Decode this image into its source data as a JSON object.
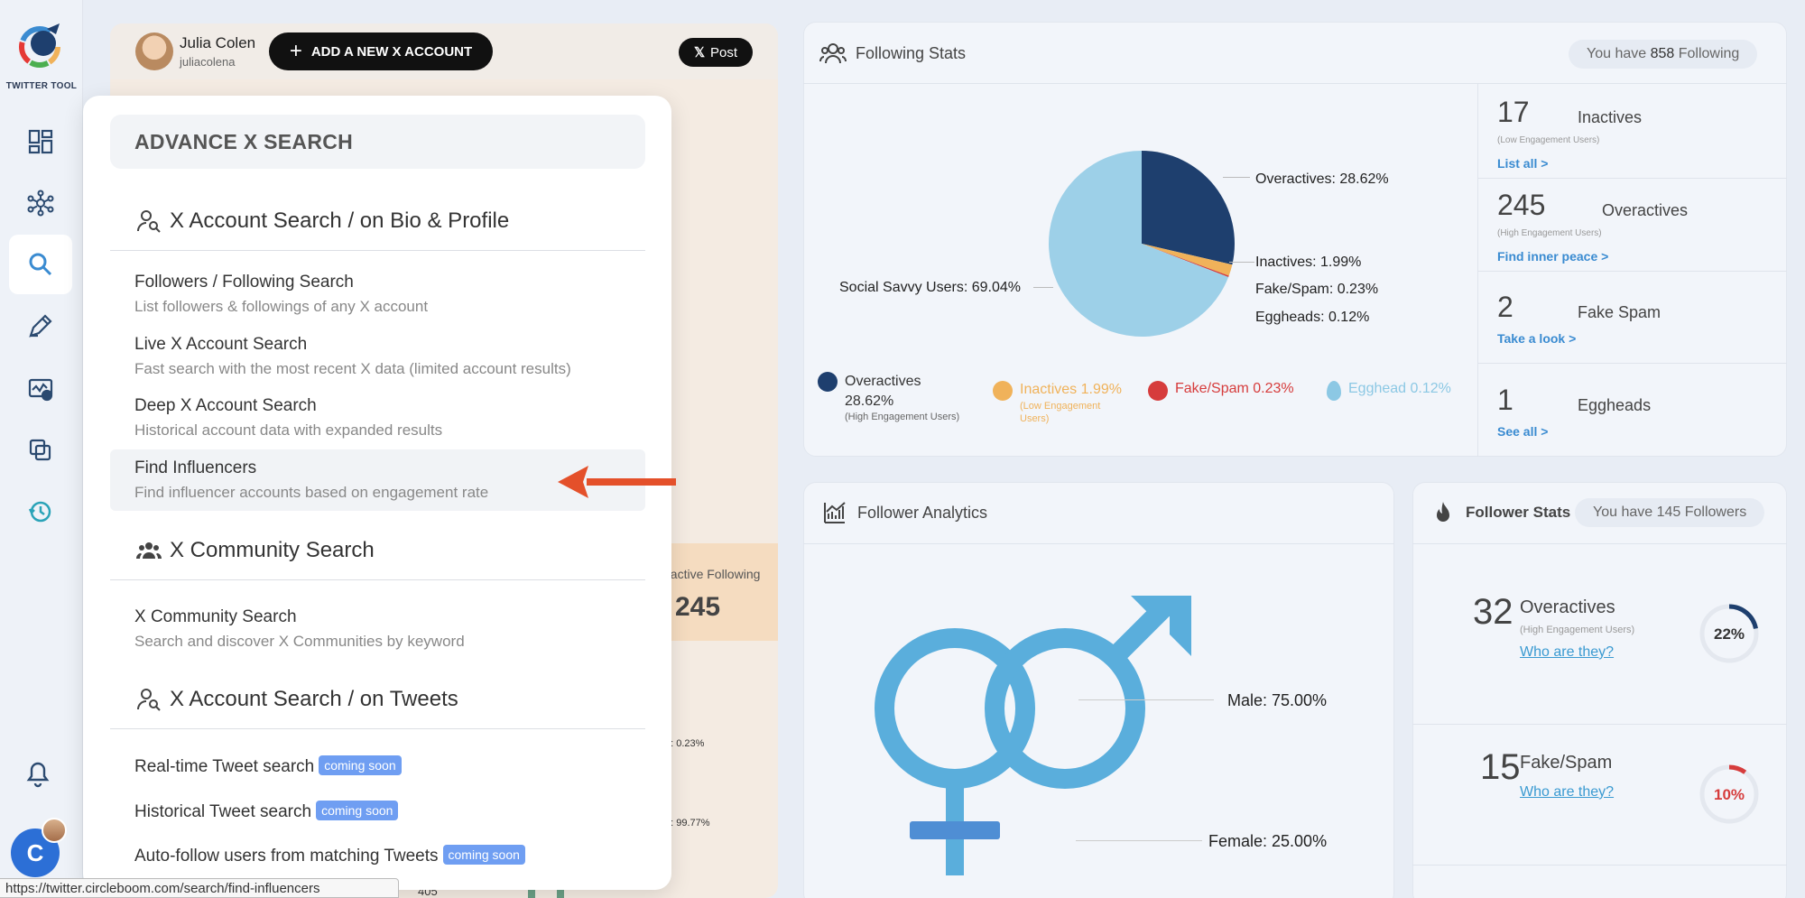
{
  "app": {
    "logo_text": "TWITTER TOOL"
  },
  "header": {
    "user_name": "Julia Colen",
    "user_handle": "juliacolena",
    "add_account_label": "ADD A NEW X ACCOUNT",
    "post_label": "Post"
  },
  "background": {
    "inactive_following_label": "nactive Following",
    "inactive_following_value": "245",
    "small1": "g: 0.23%",
    "small2": "g: 99.77%",
    "count": "405"
  },
  "search_menu": {
    "title": "ADVANCE X SEARCH",
    "sections": [
      {
        "title": "X Account Search / on Bio & Profile",
        "items": [
          {
            "title": "Followers / Following Search",
            "subtitle": "List followers & followings of any X account"
          },
          {
            "title": "Live X Account Search",
            "subtitle": "Fast search with the most recent X data (limited account results)"
          },
          {
            "title": "Deep X Account Search",
            "subtitle": "Historical account data with expanded results"
          },
          {
            "title": "Find Influencers",
            "subtitle": "Find influencer accounts based on engagement rate"
          }
        ]
      },
      {
        "title": "X Community Search",
        "items": [
          {
            "title": "X Community Search",
            "subtitle": "Search and discover X Communities by keyword"
          }
        ]
      },
      {
        "title": "X Account Search / on Tweets",
        "items": [
          {
            "title": "Real-time Tweet search",
            "badge": "coming soon"
          },
          {
            "title": "Historical Tweet search",
            "badge": "coming soon"
          },
          {
            "title": "Auto-follow users from matching Tweets",
            "badge": "coming soon"
          }
        ]
      }
    ]
  },
  "status_url": "https://twitter.circleboom.com/search/find-influencers",
  "sidebar": {
    "avatar_letter": "C"
  },
  "following_stats": {
    "title": "Following Stats",
    "pill_prefix": "You have ",
    "pill_count": "858",
    "pill_suffix": " Following",
    "stats": [
      {
        "num": "17",
        "label": "Inactives",
        "sub": "(Low Engagement Users)",
        "link": "List all >"
      },
      {
        "num": "245",
        "label": "Overactives",
        "sub": "(High Engagement Users)",
        "link": "Find inner peace >"
      },
      {
        "num": "2",
        "label": "Fake Spam",
        "sub": "",
        "link": "Take a look >"
      },
      {
        "num": "1",
        "label": "Eggheads",
        "sub": "",
        "link": "See all >"
      }
    ],
    "legend": [
      {
        "label": "Overactives",
        "value": "28.62%",
        "sub": "(High Engagement Users)",
        "color": "#1e3f6e"
      },
      {
        "label": "Inactives",
        "value": "1.99%",
        "sub": "(Low Engagement Users)",
        "color": "#f0b25a"
      },
      {
        "label": "Fake/Spam",
        "value": "0.23%",
        "sub": "",
        "color": "#d63c3c"
      },
      {
        "label": "Egghead",
        "value": "0.12%",
        "sub": "",
        "color": "#8cc8e4"
      }
    ]
  },
  "chart_data": [
    {
      "type": "pie",
      "slices": [
        {
          "label": "Overactives",
          "value": 28.62,
          "color": "#1e3f6e"
        },
        {
          "label": "Inactives",
          "value": 1.99,
          "color": "#f0b25a"
        },
        {
          "label": "Fake/Spam",
          "value": 0.23,
          "color": "#d63c3c"
        },
        {
          "label": "Eggheads",
          "value": 0.12,
          "color": "#8cc8e4"
        },
        {
          "label": "Social Savvy Users",
          "value": 69.04,
          "color": "#9dd0e8"
        }
      ],
      "labels": {
        "overactives": "Overactives: 28.62%",
        "inactives": "Inactives: 1.99%",
        "fakespam": "Fake/Spam: 0.23%",
        "eggheads": "Eggheads: 0.12%",
        "savvy": "Social Savvy Users: 69.04%"
      }
    },
    {
      "type": "other",
      "title": "Follower Analytics",
      "series": [
        {
          "name": "Male",
          "value": 75.0
        },
        {
          "name": "Female",
          "value": 25.0
        }
      ],
      "labels": {
        "male": "Male: 75.00%",
        "female": "Female: 25.00%"
      }
    }
  ],
  "follower_analytics": {
    "title": "Follower Analytics"
  },
  "follower_stats": {
    "title": "Follower Stats",
    "pill": "You have 145 Followers",
    "items": [
      {
        "num": "32",
        "label": "Overactives",
        "sub": "(High Engagement Users)",
        "link": "Who are they?",
        "percent": 22,
        "percent_label": "22%",
        "color": "#1e3f6e"
      },
      {
        "num": "15",
        "label": "Fake/Spam",
        "sub": "",
        "link": "Who are they?",
        "percent": 10,
        "percent_label": "10%",
        "color": "#d63c3c"
      }
    ]
  }
}
